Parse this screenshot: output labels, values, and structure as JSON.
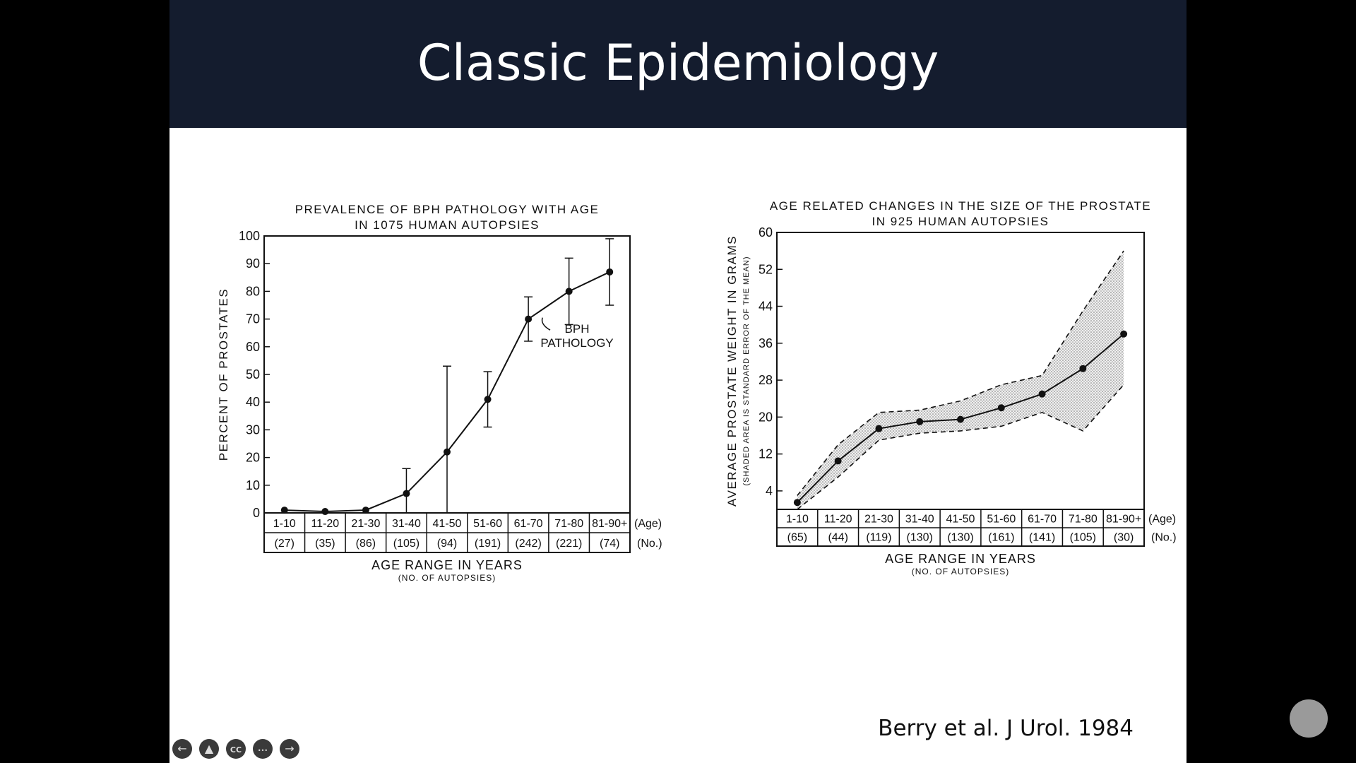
{
  "slide": {
    "title": "Classic Epidemiology",
    "citation": "Berry et al. J Urol. 1984"
  },
  "controls": [
    {
      "name": "prev-slide-button",
      "icon": "arrow-left-icon",
      "glyph": "←"
    },
    {
      "name": "pointer-button",
      "icon": "pointer-icon",
      "glyph": "▲"
    },
    {
      "name": "captions-button",
      "icon": "cc-icon",
      "glyph": "CC"
    },
    {
      "name": "more-options-button",
      "icon": "ellipsis-icon",
      "glyph": "•••"
    },
    {
      "name": "next-slide-button",
      "icon": "arrow-right-icon",
      "glyph": "→"
    }
  ],
  "chart_data": [
    {
      "type": "line",
      "title": "PREVALENCE OF BPH PATHOLOGY WITH AGE",
      "subtitle": "IN 1075 HUMAN AUTOPSIES",
      "ylabel": "PERCENT OF PROSTATES",
      "xlabel": "AGE RANGE IN YEARS",
      "xlabel_sub": "(NO. OF AUTOPSIES)",
      "ylim": [
        0,
        100
      ],
      "yticks": [
        0,
        10,
        20,
        30,
        40,
        50,
        60,
        70,
        80,
        90,
        100
      ],
      "categories": [
        "1-10",
        "11-20",
        "21-30",
        "31-40",
        "41-50",
        "51-60",
        "61-70",
        "71-80",
        "81-90+"
      ],
      "counts": [
        "(27)",
        "(35)",
        "(86)",
        "(105)",
        "(94)",
        "(191)",
        "(242)",
        "(221)",
        "(74)"
      ],
      "row_labels": [
        "(Age)",
        "(No.)"
      ],
      "series": [
        {
          "values": [
            1,
            0.5,
            1,
            7,
            22,
            41,
            70,
            80,
            87
          ],
          "error_high": [
            null,
            null,
            null,
            16,
            53,
            51,
            78,
            92,
            99
          ],
          "error_low": [
            null,
            null,
            null,
            0,
            0,
            31,
            62,
            68,
            75
          ]
        }
      ],
      "annotation": [
        "BPH",
        "PATHOLOGY"
      ]
    },
    {
      "type": "area",
      "title": "AGE RELATED CHANGES IN THE SIZE OF THE PROSTATE",
      "subtitle": "IN 925 HUMAN AUTOPSIES",
      "ylabel": "AVERAGE PROSTATE WEIGHT IN GRAMS",
      "ylabel_sub": "(SHADED AREA IS STANDARD ERROR OF THE MEAN)",
      "xlabel": "AGE RANGE IN YEARS",
      "xlabel_sub": "(NO. OF AUTOPSIES)",
      "ylim": [
        0,
        60
      ],
      "yticks": [
        4,
        12,
        20,
        28,
        36,
        44,
        52,
        60
      ],
      "categories": [
        "1-10",
        "11-20",
        "21-30",
        "31-40",
        "41-50",
        "51-60",
        "61-70",
        "71-80",
        "81-90+"
      ],
      "counts": [
        "(65)",
        "(44)",
        "(119)",
        "(130)",
        "(130)",
        "(161)",
        "(141)",
        "(105)",
        "(30)"
      ],
      "row_labels": [
        "(Age)",
        "(No.)"
      ],
      "series": [
        {
          "values": [
            1.5,
            10.5,
            17.5,
            19,
            19.5,
            22,
            25,
            30.5,
            38
          ],
          "upper": [
            3,
            14,
            21,
            21.5,
            23.5,
            27,
            29,
            43,
            56
          ],
          "lower": [
            0,
            7,
            15,
            16.5,
            17,
            18,
            21,
            17,
            27
          ]
        }
      ]
    }
  ]
}
